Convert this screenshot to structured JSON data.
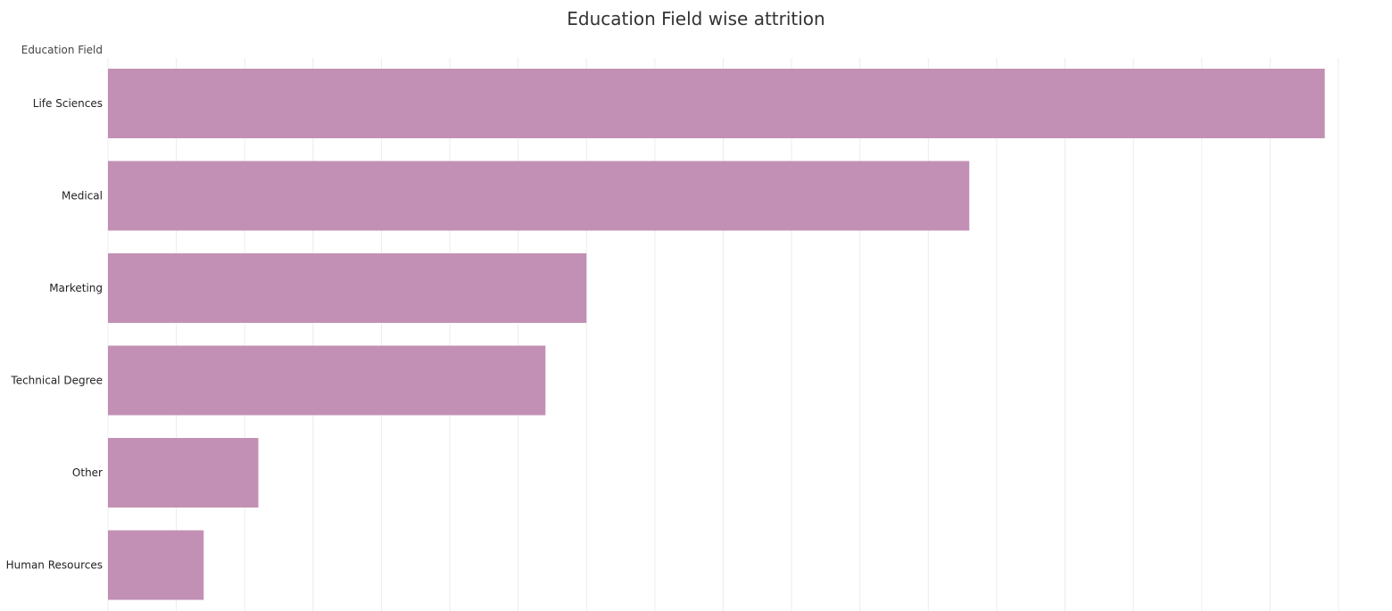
{
  "chart_data": {
    "type": "bar",
    "orientation": "horizontal",
    "title": "Education Field wise attrition",
    "ylabel": "Education Field",
    "xlabel": "",
    "categories": [
      "Life Sciences",
      "Medical",
      "Marketing",
      "Technical Degree",
      "Other",
      "Human Resources"
    ],
    "values": [
      89,
      63,
      35,
      32,
      11,
      7
    ],
    "xlim": [
      0,
      90
    ],
    "grid": true,
    "bar_color": "#c390b5",
    "grid_color": "#ececec"
  }
}
